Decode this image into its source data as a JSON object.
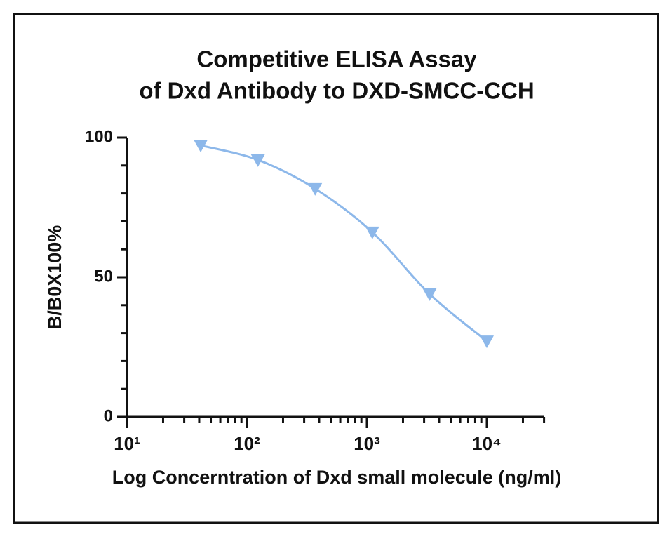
{
  "chart_data": {
    "type": "line",
    "title": [
      "Competitive ELISA Assay",
      "of  Dxd Antibody to DXD-SMCC-CCH"
    ],
    "x_label": "Log Concerntration of Dxd small molecule (ng/ml)",
    "y_label": "B/B0X100%",
    "log_x": true,
    "xlim": [
      10,
      30000
    ],
    "xticks": [
      {
        "value": 10,
        "label": "10¹"
      },
      {
        "value": 100,
        "label": "10²"
      },
      {
        "value": 1000,
        "label": "10³"
      },
      {
        "value": 10000,
        "label": "10⁴"
      }
    ],
    "xminorticks": [
      20,
      30,
      40,
      50,
      60,
      70,
      80,
      90,
      200,
      300,
      400,
      500,
      600,
      700,
      800,
      900,
      2000,
      3000,
      4000,
      5000,
      6000,
      7000,
      8000,
      9000,
      20000,
      30000
    ],
    "ylim": [
      0,
      100
    ],
    "yticks": [
      0,
      50,
      100
    ],
    "yminorticks": [
      10,
      20,
      30,
      40,
      60,
      70,
      80,
      90
    ],
    "x": [
      41.15,
      123.5,
      370.4,
      1111,
      3333,
      10000
    ],
    "series": [
      {
        "color": "#8db8ea",
        "marker": "triangle-down",
        "values": [
          97.2,
          92,
          81.7,
          66.1,
          44,
          27.1
        ]
      }
    ]
  }
}
